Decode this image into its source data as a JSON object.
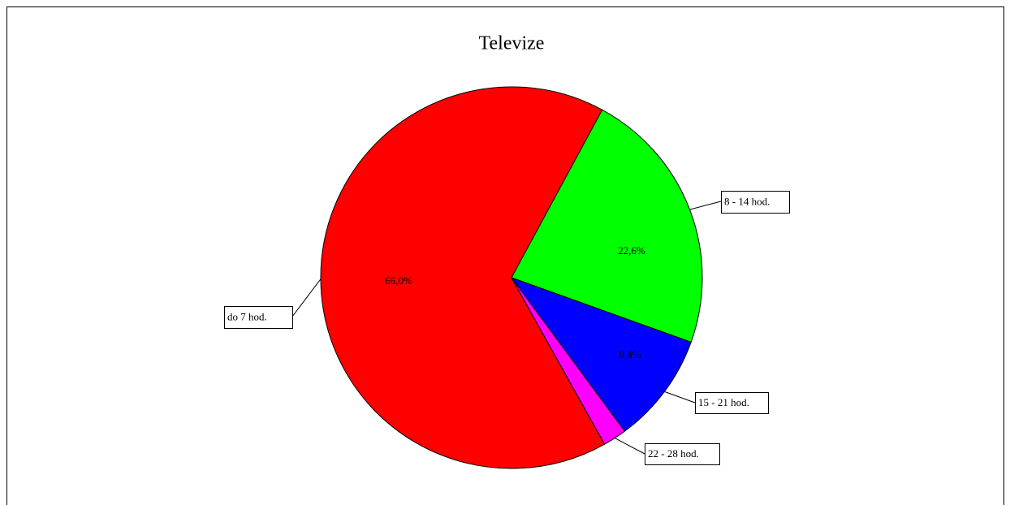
{
  "chart_data": {
    "type": "pie",
    "title": "Televize",
    "categories": [
      "do 7 hod.",
      "8 - 14 hod.",
      "15 - 21 hod.",
      "22 - 28 hod."
    ],
    "values": [
      66.0,
      22.6,
      9.4,
      2.0
    ],
    "value_labels": [
      "66,0%",
      "22,6%",
      "9,4%",
      null
    ],
    "colors": [
      "#ff0000",
      "#00ff00",
      "#0000ff",
      "#ff00ff"
    ]
  }
}
